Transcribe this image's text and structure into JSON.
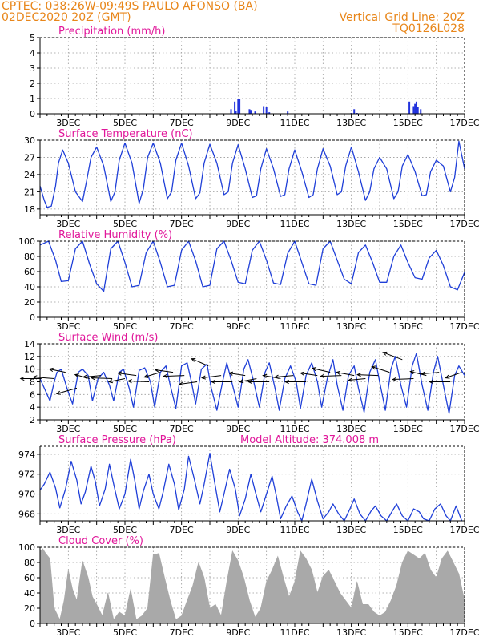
{
  "header": {
    "line1": "CPTEC:   038:26W-09:49S   PAULO AFONSO (BA)",
    "line2": "02DEC2020 20Z (GMT)",
    "grid_note": "Vertical Grid Line: 20Z",
    "model": "TQ0126L028"
  },
  "colors": {
    "header": "#e8861a",
    "title": "#e0179a",
    "line": "#1f3fd8",
    "bars": "#2233dd",
    "cloud": "#a9a9a9",
    "grid": "#9a9a9a"
  },
  "x_labels": [
    "3DEC",
    "5DEC",
    "7DEC",
    "9DEC",
    "11DEC",
    "13DEC",
    "15DEC",
    "17DEC"
  ],
  "chart_data": [
    {
      "id": "precip",
      "type": "bar",
      "title": "Precipitation (mm/h)",
      "ylim": [
        0,
        5
      ],
      "yticks": [
        0,
        1,
        2,
        3,
        4,
        5
      ],
      "x_unit": "days since 02DEC2020 20Z",
      "x": [
        6.75,
        6.88,
        6.92,
        7.0,
        7.05,
        7.4,
        7.45,
        7.6,
        7.9,
        8.0,
        8.1,
        8.75,
        11.0,
        11.1,
        11.2,
        13.05,
        13.2,
        13.25,
        13.3,
        13.35,
        13.45
      ],
      "values": [
        0.3,
        0.8,
        0.2,
        0.95,
        0.95,
        0.3,
        0.25,
        0.15,
        0.5,
        0.45,
        0.1,
        0.15,
        0.05,
        0.3,
        0.05,
        0.8,
        0.5,
        0.65,
        0.8,
        0.45,
        0.3
      ]
    },
    {
      "id": "temp",
      "type": "line",
      "title": "Surface Temperature (nC)",
      "ylim": [
        17,
        30
      ],
      "yticks": [
        18,
        21,
        24,
        27,
        30
      ],
      "x_unit": "days since 02DEC2020 20Z",
      "x": [
        0,
        0.15,
        0.25,
        0.4,
        0.55,
        0.65,
        0.8,
        1.0,
        1.25,
        1.5,
        1.65,
        1.8,
        2.0,
        2.25,
        2.5,
        2.65,
        2.8,
        3.0,
        3.25,
        3.5,
        3.65,
        3.8,
        4.0,
        4.25,
        4.5,
        4.65,
        4.8,
        5.0,
        5.25,
        5.5,
        5.65,
        5.8,
        6.0,
        6.25,
        6.5,
        6.65,
        6.8,
        7.0,
        7.25,
        7.5,
        7.65,
        7.8,
        8.0,
        8.25,
        8.5,
        8.65,
        8.8,
        9.0,
        9.25,
        9.5,
        9.65,
        9.8,
        10.0,
        10.25,
        10.5,
        10.65,
        10.8,
        11.0,
        11.25,
        11.5,
        11.65,
        11.8,
        12.0,
        12.25,
        12.5,
        12.65,
        12.8,
        13.0,
        13.25,
        13.5,
        13.65,
        13.8,
        14.0,
        14.25,
        14.5,
        14.65,
        14.8,
        15.0
      ],
      "values": [
        22.0,
        19.5,
        18.3,
        18.5,
        22.0,
        26.0,
        28.3,
        26.0,
        21.0,
        19.3,
        23.0,
        27.0,
        28.8,
        25.5,
        19.3,
        21.0,
        26.5,
        29.5,
        26.0,
        19.0,
        21.5,
        27.0,
        29.5,
        26.0,
        19.8,
        21.0,
        26.5,
        29.5,
        25.5,
        19.8,
        20.8,
        26.0,
        29.3,
        26.0,
        20.5,
        21.0,
        26.0,
        29.2,
        25.0,
        20.0,
        20.3,
        25.0,
        28.5,
        25.0,
        20.2,
        20.5,
        25.0,
        28.3,
        24.5,
        20.0,
        20.5,
        25.0,
        28.5,
        25.5,
        20.5,
        21.0,
        25.5,
        28.8,
        24.5,
        19.5,
        21.0,
        25.0,
        27.0,
        25.0,
        19.8,
        21.0,
        25.5,
        27.5,
        24.5,
        20.3,
        20.5,
        24.5,
        26.5,
        25.5,
        21.0,
        23.5,
        29.8,
        25.0
      ]
    },
    {
      "id": "rh",
      "type": "line",
      "title": "Relative Humidity (%)",
      "ylim": [
        0,
        100
      ],
      "yticks": [
        0,
        20,
        40,
        60,
        80,
        100
      ],
      "x_unit": "days since 02DEC2020 20Z",
      "x": [
        0,
        0.3,
        0.55,
        0.75,
        1.0,
        1.25,
        1.5,
        1.75,
        2.0,
        2.25,
        2.5,
        2.75,
        3.0,
        3.25,
        3.5,
        3.75,
        4.0,
        4.25,
        4.5,
        4.75,
        5.0,
        5.25,
        5.5,
        5.75,
        6.0,
        6.25,
        6.5,
        6.75,
        7.0,
        7.25,
        7.5,
        7.75,
        8.0,
        8.25,
        8.5,
        8.75,
        9.0,
        9.25,
        9.5,
        9.75,
        10.0,
        10.25,
        10.5,
        10.75,
        11.0,
        11.25,
        11.5,
        11.75,
        12.0,
        12.25,
        12.5,
        12.75,
        13.0,
        13.25,
        13.5,
        13.75,
        14.0,
        14.25,
        14.5,
        14.75,
        15.0
      ],
      "values": [
        95,
        100,
        75,
        47,
        48,
        90,
        100,
        70,
        44,
        34,
        90,
        100,
        72,
        40,
        42,
        85,
        100,
        72,
        40,
        42,
        88,
        100,
        74,
        40,
        42,
        90,
        100,
        75,
        46,
        44,
        88,
        100,
        75,
        45,
        43,
        84,
        100,
        72,
        44,
        42,
        90,
        100,
        75,
        50,
        44,
        85,
        95,
        72,
        46,
        46,
        80,
        95,
        72,
        52,
        50,
        78,
        88,
        68,
        40,
        36,
        59
      ]
    },
    {
      "id": "wind",
      "type": "line",
      "title": "Surface Wind (m/s)",
      "ylim": [
        2,
        14
      ],
      "yticks": [
        2,
        4,
        6,
        8,
        10,
        12,
        14
      ],
      "x_unit": "days since 02DEC2020 20Z",
      "x": [
        0,
        0.2,
        0.35,
        0.5,
        0.6,
        0.75,
        0.95,
        1.15,
        1.35,
        1.5,
        1.7,
        1.85,
        2.05,
        2.25,
        2.45,
        2.6,
        2.8,
        2.95,
        3.15,
        3.3,
        3.5,
        3.7,
        3.9,
        4.05,
        4.25,
        4.45,
        4.6,
        4.8,
        5.0,
        5.2,
        5.35,
        5.5,
        5.7,
        5.9,
        6.05,
        6.25,
        6.45,
        6.6,
        6.8,
        7.0,
        7.2,
        7.35,
        7.55,
        7.75,
        7.95,
        8.1,
        8.3,
        8.45,
        8.65,
        8.85,
        9.05,
        9.2,
        9.4,
        9.6,
        9.8,
        9.95,
        10.15,
        10.35,
        10.5,
        10.7,
        10.9,
        11.1,
        11.25,
        11.45,
        11.65,
        11.85,
        12.0,
        12.2,
        12.4,
        12.55,
        12.75,
        12.95,
        13.15,
        13.3,
        13.5,
        13.7,
        13.9,
        14.05,
        14.25,
        14.45,
        14.65,
        14.8,
        15.0
      ],
      "values": [
        8.5,
        6.5,
        5.0,
        8.0,
        9.5,
        10.0,
        7.0,
        4.5,
        9.5,
        10.0,
        9.0,
        5.0,
        8.5,
        9.5,
        7.5,
        5.0,
        9.5,
        10.0,
        7.0,
        4.0,
        9.8,
        10.2,
        8.0,
        4.0,
        9.5,
        10.5,
        7.5,
        3.8,
        10.5,
        11.0,
        8.0,
        4.5,
        10.0,
        10.8,
        7.0,
        3.5,
        8.0,
        11.0,
        7.5,
        4.0,
        10.0,
        11.5,
        8.0,
        4.0,
        9.5,
        11.0,
        7.0,
        3.5,
        8.5,
        10.5,
        8.0,
        3.8,
        9.0,
        11.0,
        8.0,
        4.0,
        8.5,
        11.5,
        7.5,
        3.5,
        9.0,
        10.5,
        7.0,
        3.2,
        9.5,
        11.5,
        8.0,
        3.5,
        10.0,
        12.0,
        7.5,
        4.0,
        10.5,
        12.5,
        7.5,
        3.5,
        9.5,
        12.0,
        7.5,
        3.0,
        9.0,
        10.5,
        9.0
      ]
    },
    {
      "id": "pressure",
      "type": "line",
      "title": "Surface Pressure (hPa)",
      "subtitle": "Model Altitude: 374.008 m",
      "ylim": [
        967.3,
        974.8
      ],
      "yticks": [
        968,
        970,
        972,
        974
      ],
      "x_unit": "days since 02DEC2020 20Z",
      "x": [
        0,
        0.15,
        0.35,
        0.55,
        0.7,
        0.9,
        1.1,
        1.3,
        1.45,
        1.6,
        1.8,
        1.95,
        2.1,
        2.3,
        2.45,
        2.6,
        2.8,
        3.0,
        3.2,
        3.35,
        3.5,
        3.65,
        3.85,
        4.0,
        4.2,
        4.35,
        4.55,
        4.75,
        4.9,
        5.1,
        5.25,
        5.45,
        5.65,
        5.8,
        6.0,
        6.15,
        6.35,
        6.5,
        6.7,
        6.9,
        7.05,
        7.25,
        7.45,
        7.6,
        7.8,
        8.0,
        8.2,
        8.35,
        8.5,
        8.7,
        8.9,
        9.1,
        9.25,
        9.4,
        9.6,
        9.8,
        10.0,
        10.2,
        10.35,
        10.55,
        10.75,
        10.95,
        11.1,
        11.3,
        11.5,
        11.7,
        11.85,
        12.05,
        12.25,
        12.45,
        12.6,
        12.8,
        13.0,
        13.2,
        13.4,
        13.55,
        13.75,
        13.95,
        14.15,
        14.35,
        14.5,
        14.7,
        14.9
      ],
      "values": [
        970.4,
        971.0,
        972.2,
        970.6,
        968.6,
        970.5,
        973.3,
        971.4,
        969.0,
        970.2,
        972.8,
        971.3,
        968.8,
        970.5,
        973.0,
        971.0,
        968.5,
        970.0,
        973.5,
        971.3,
        968.5,
        970.3,
        972.0,
        970.0,
        968.5,
        970.2,
        973.0,
        971.0,
        968.4,
        970.5,
        973.8,
        971.5,
        969.0,
        971.0,
        974.1,
        971.5,
        968.2,
        970.0,
        972.5,
        970.5,
        967.8,
        969.5,
        972.0,
        970.3,
        968.2,
        970.0,
        971.8,
        969.8,
        967.5,
        968.8,
        969.8,
        968.2,
        967.2,
        969.0,
        971.5,
        969.3,
        967.5,
        968.2,
        969.0,
        968.0,
        967.3,
        968.5,
        969.5,
        968.0,
        967.3,
        968.3,
        968.8,
        967.8,
        967.3,
        968.3,
        969.0,
        967.8,
        967.3,
        968.5,
        968.2,
        967.5,
        967.3,
        968.5,
        969.0,
        967.8,
        967.3,
        968.8,
        967.0
      ]
    },
    {
      "id": "cloud",
      "type": "area",
      "title": "Cloud Cover (%)",
      "ylim": [
        0,
        100
      ],
      "yticks": [
        0,
        20,
        40,
        60,
        80,
        100
      ],
      "x_unit": "days since 02DEC2020 20Z",
      "x": [
        0,
        0.1,
        0.2,
        0.35,
        0.5,
        0.7,
        0.85,
        1.0,
        1.15,
        1.3,
        1.5,
        1.7,
        1.85,
        2.0,
        2.2,
        2.4,
        2.6,
        2.8,
        3.0,
        3.2,
        3.4,
        3.6,
        3.8,
        4.0,
        4.2,
        4.4,
        4.6,
        4.8,
        5.0,
        5.2,
        5.4,
        5.6,
        5.8,
        6.0,
        6.2,
        6.4,
        6.6,
        6.8,
        7.0,
        7.2,
        7.4,
        7.6,
        7.8,
        8.0,
        8.2,
        8.4,
        8.6,
        8.8,
        9.0,
        9.2,
        9.4,
        9.6,
        9.8,
        10.0,
        10.2,
        10.4,
        10.6,
        10.8,
        11.0,
        11.2,
        11.4,
        11.6,
        11.8,
        12.0,
        12.2,
        12.4,
        12.6,
        12.8,
        13.0,
        13.2,
        13.4,
        13.6,
        13.8,
        14.0,
        14.2,
        14.4,
        14.6,
        14.8,
        15.0
      ],
      "values": [
        95,
        98,
        92,
        85,
        20,
        5,
        30,
        70,
        45,
        30,
        82,
        60,
        35,
        25,
        10,
        40,
        5,
        15,
        10,
        45,
        5,
        10,
        20,
        90,
        92,
        60,
        30,
        5,
        10,
        30,
        50,
        80,
        60,
        20,
        25,
        10,
        55,
        95,
        82,
        60,
        30,
        8,
        20,
        55,
        70,
        88,
        60,
        35,
        55,
        95,
        85,
        70,
        40,
        62,
        70,
        55,
        40,
        30,
        20,
        55,
        25,
        25,
        15,
        10,
        15,
        30,
        50,
        80,
        95,
        90,
        85,
        92,
        70,
        60,
        85,
        95,
        80,
        65,
        30
      ]
    }
  ],
  "wind_vectors": {
    "x": [
      0.05,
      0.5,
      0.9,
      1.3,
      1.75,
      2.15,
      2.55,
      3.0,
      3.4,
      3.85,
      4.25,
      4.7,
      5.1,
      5.55,
      5.95,
      6.4,
      6.8,
      7.25,
      7.65,
      8.1,
      8.5,
      8.95,
      9.4,
      9.8,
      10.25,
      10.65,
      11.1,
      11.5,
      11.95,
      12.35,
      12.8,
      13.2,
      13.65,
      14.1,
      14.5,
      14.9
    ],
    "speed": [
      8.5,
      8.5,
      9.5,
      7.0,
      8.5,
      9.0,
      8.5,
      8.5,
      9.0,
      8.0,
      9.5,
      9.5,
      9.0,
      8.0,
      10.5,
      9.0,
      8.0,
      9.0,
      8.5,
      8.0,
      8.5,
      9.0,
      8.0,
      9.0,
      9.5,
      9.0,
      9.0,
      8.5,
      9.0,
      9.5,
      11.5,
      8.5,
      9.0,
      9.5,
      8.0,
      9.5
    ],
    "dx": [
      -26,
      -26,
      -20,
      -25,
      -18,
      -22,
      -26,
      -20,
      -23,
      -26,
      -20,
      -22,
      -26,
      -22,
      -21,
      -24,
      -26,
      -20,
      -21,
      -26,
      -22,
      -23,
      -26,
      -21,
      -22,
      -26,
      -22,
      -21,
      -26,
      -22,
      -24,
      -26,
      -20,
      -22,
      -26,
      -20
    ],
    "dy": [
      0,
      -2,
      -4,
      7,
      -5,
      2,
      -1,
      4,
      -3,
      -1,
      6,
      -3,
      1,
      3,
      -9,
      3,
      0,
      -3,
      4,
      0,
      -4,
      2,
      0,
      -3,
      -5,
      1,
      -4,
      2,
      -1,
      -7,
      -9,
      1,
      -5,
      2,
      0,
      7
    ]
  }
}
